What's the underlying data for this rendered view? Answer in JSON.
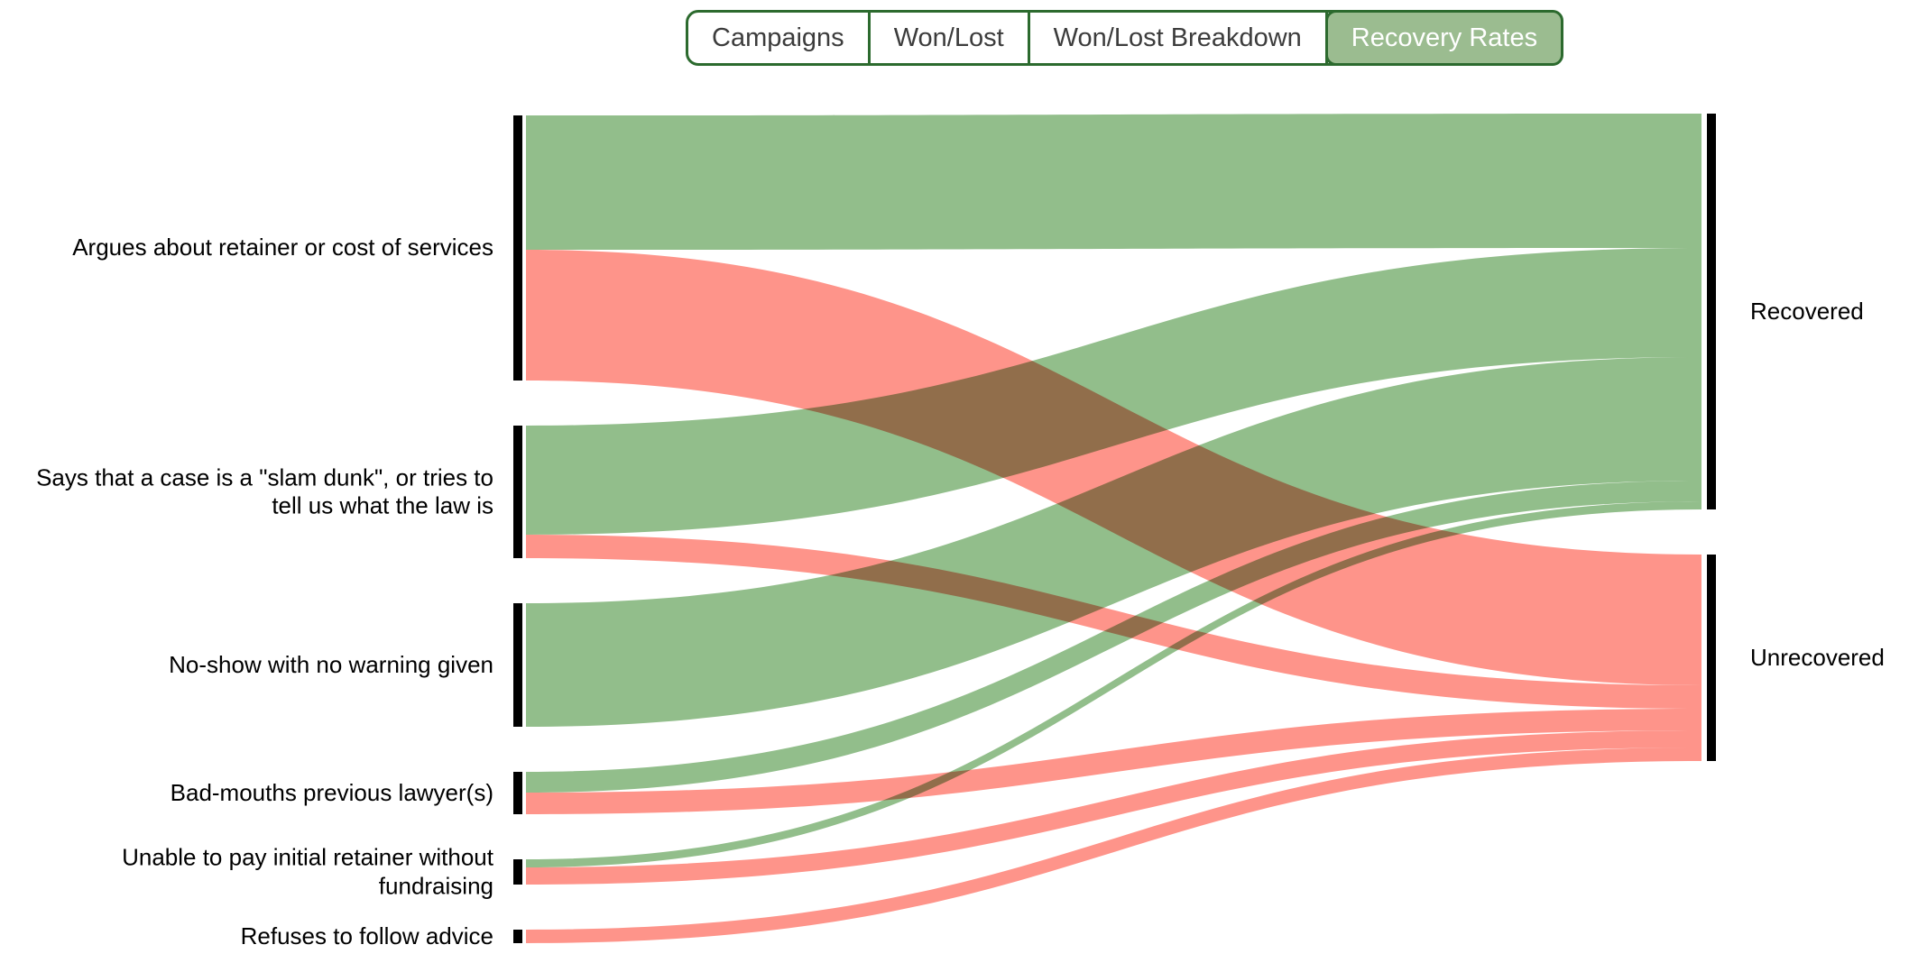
{
  "header": {
    "tabs": [
      {
        "label": "Campaigns",
        "selected": false
      },
      {
        "label": "Won/Lost",
        "selected": false
      },
      {
        "label": "Won/Lost Breakdown",
        "selected": false
      },
      {
        "label": "Recovery Rates",
        "selected": true
      }
    ]
  },
  "colors": {
    "flow_green": "#92BE8B",
    "flow_red": "#FE948A",
    "node_bar": "#000000",
    "tab_border": "#2C6A2E",
    "tab_selected_bg": "#9BBC90",
    "tab_text": "#3C3C3C",
    "tab_selected_text": "#FFFFFF",
    "label_text": "#000000"
  },
  "chart_data": {
    "type": "sankey",
    "orientation": "horizontal",
    "value_note": "No numeric labels are shown in the chart; link values are estimated from band thickness (1 unit = 1 px of band height).",
    "left_nodes": [
      {
        "label": "Argues about retainer or cost of services"
      },
      {
        "label": "Says that a case is a \"slam dunk\", or tries to\ntell us what the law is"
      },
      {
        "label": "No-show with no warning given"
      },
      {
        "label": "Bad-mouths previous lawyer(s)"
      },
      {
        "label": "Unable to pay initial retainer without\nfundraising"
      },
      {
        "label": "Refuses to follow advice"
      }
    ],
    "right_nodes": [
      {
        "label": "Recovered"
      },
      {
        "label": "Unrecovered"
      }
    ],
    "links": [
      {
        "source": 0,
        "target": 0,
        "value": 149,
        "status": "recovered"
      },
      {
        "source": 0,
        "target": 1,
        "value": 145,
        "status": "unrecovered"
      },
      {
        "source": 1,
        "target": 0,
        "value": 121,
        "status": "recovered"
      },
      {
        "source": 1,
        "target": 1,
        "value": 26,
        "status": "unrecovered"
      },
      {
        "source": 2,
        "target": 0,
        "value": 137,
        "status": "recovered"
      },
      {
        "source": 3,
        "target": 0,
        "value": 23,
        "status": "recovered"
      },
      {
        "source": 3,
        "target": 1,
        "value": 24,
        "status": "unrecovered"
      },
      {
        "source": 4,
        "target": 0,
        "value": 9,
        "status": "recovered"
      },
      {
        "source": 4,
        "target": 1,
        "value": 19,
        "status": "unrecovered"
      },
      {
        "source": 5,
        "target": 1,
        "value": 15,
        "status": "unrecovered"
      }
    ]
  }
}
